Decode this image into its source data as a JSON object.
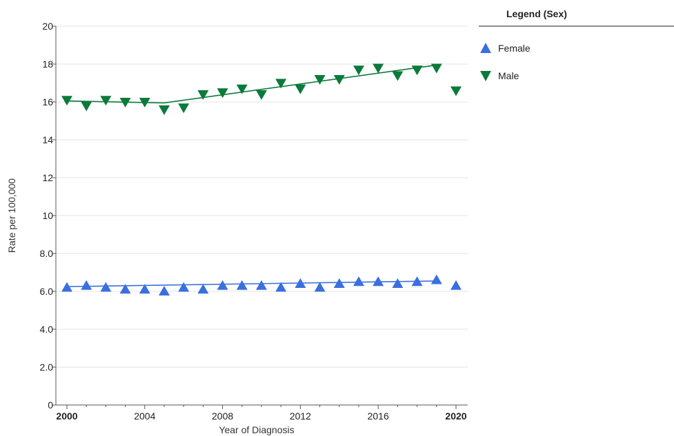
{
  "chart_data": {
    "type": "line",
    "xlabel": "Year of Diagnosis",
    "ylabel": "Rate per 100,000",
    "xlim": [
      2000,
      2020
    ],
    "ylim": [
      0,
      20
    ],
    "x_ticks": [
      {
        "value": 2000,
        "label": "2000",
        "bold": true
      },
      {
        "value": 2004,
        "label": "2004",
        "bold": false
      },
      {
        "value": 2008,
        "label": "2008",
        "bold": false
      },
      {
        "value": 2012,
        "label": "2012",
        "bold": false
      },
      {
        "value": 2016,
        "label": "2016",
        "bold": false
      },
      {
        "value": 2020,
        "label": "2020",
        "bold": true
      }
    ],
    "y_ticks": [
      {
        "value": 0,
        "label": "0"
      },
      {
        "value": 2,
        "label": "2.0"
      },
      {
        "value": 4,
        "label": "4.0"
      },
      {
        "value": 6,
        "label": "6.0"
      },
      {
        "value": 8,
        "label": "8.0"
      },
      {
        "value": 10,
        "label": "10"
      },
      {
        "value": 12,
        "label": "12"
      },
      {
        "value": 14,
        "label": "14"
      },
      {
        "value": 16,
        "label": "16"
      },
      {
        "value": 18,
        "label": "18"
      },
      {
        "value": 20,
        "label": "20"
      }
    ],
    "grid": "horizontal",
    "legend": {
      "title": "Legend (Sex)",
      "placement": "right"
    },
    "series": [
      {
        "name": "Female",
        "color": "#3b6fe0",
        "marker": "triangle-up",
        "x": [
          2000,
          2001,
          2002,
          2003,
          2004,
          2005,
          2006,
          2007,
          2008,
          2009,
          2010,
          2011,
          2012,
          2013,
          2014,
          2015,
          2016,
          2017,
          2018,
          2019,
          2020
        ],
        "values": [
          6.2,
          6.3,
          6.2,
          6.1,
          6.1,
          6.0,
          6.2,
          6.1,
          6.3,
          6.3,
          6.3,
          6.2,
          6.4,
          6.2,
          6.4,
          6.5,
          6.5,
          6.4,
          6.5,
          6.6,
          6.3
        ],
        "trend": [
          [
            2000,
            6.25
          ],
          [
            2019,
            6.55
          ]
        ]
      },
      {
        "name": "Male",
        "color": "#0b7a3a",
        "marker": "triangle-down",
        "x": [
          2000,
          2001,
          2002,
          2003,
          2004,
          2005,
          2006,
          2007,
          2008,
          2009,
          2010,
          2011,
          2012,
          2013,
          2014,
          2015,
          2016,
          2017,
          2018,
          2019,
          2020
        ],
        "values": [
          16.1,
          15.8,
          16.1,
          16.0,
          16.0,
          15.6,
          15.7,
          16.4,
          16.5,
          16.7,
          16.4,
          17.0,
          16.7,
          17.2,
          17.2,
          17.7,
          17.8,
          17.4,
          17.7,
          17.8,
          16.6
        ],
        "trend": [
          [
            2000,
            16.05
          ],
          [
            2005,
            15.95
          ],
          [
            2019,
            17.95
          ]
        ]
      }
    ]
  }
}
